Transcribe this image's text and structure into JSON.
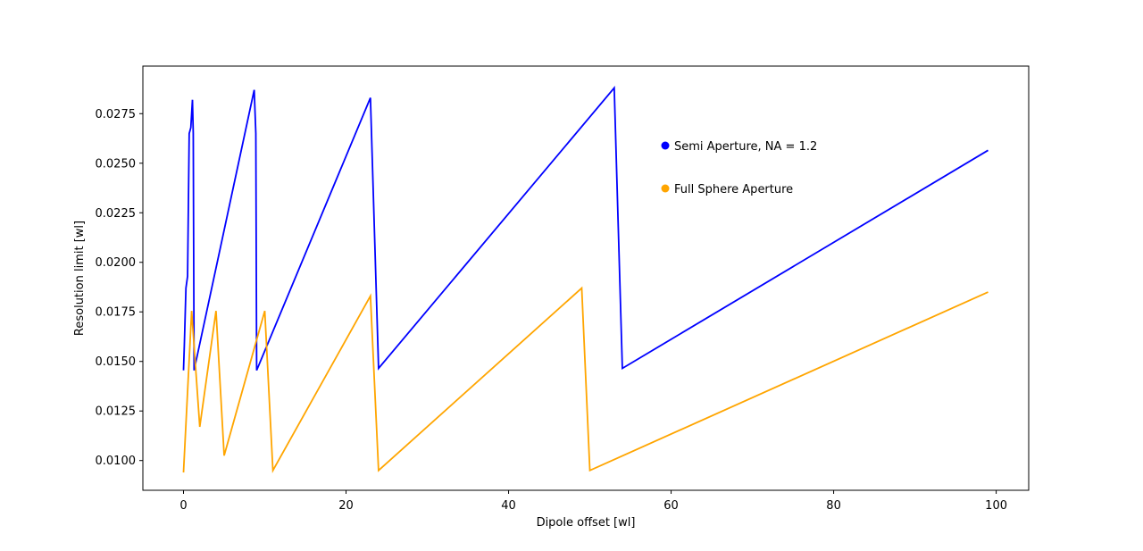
{
  "chart_data": {
    "type": "line",
    "title": "",
    "xlabel": "Dipole offset [wl]",
    "ylabel": "Resolution limit [wl]",
    "xlim": [
      -5,
      104
    ],
    "ylim": [
      0.0085,
      0.0299
    ],
    "xticks": [
      0,
      20,
      40,
      60,
      80,
      100
    ],
    "xtick_labels": [
      "0",
      "20",
      "40",
      "60",
      "80",
      "100"
    ],
    "yticks": [
      0.01,
      0.0125,
      0.015,
      0.0175,
      0.02,
      0.0225,
      0.025,
      0.0275
    ],
    "ytick_labels": [
      "0.0100",
      "0.0125",
      "0.0150",
      "0.0175",
      "0.0200",
      "0.0225",
      "0.0250",
      "0.0275"
    ],
    "grid": false,
    "legend_position": "upper-center-right",
    "series": [
      {
        "name": "Semi Aperture, NA = 1.2",
        "color": "#0000ff",
        "points": [
          [
            0,
            0.01455
          ],
          [
            0.1,
            0.0158
          ],
          [
            0.3,
            0.0187
          ],
          [
            0.5,
            0.0193
          ],
          [
            0.7,
            0.0265
          ],
          [
            0.9,
            0.0268
          ],
          [
            1.1,
            0.0282
          ],
          [
            1.2,
            0.0265
          ],
          [
            1.3,
            0.01455
          ],
          [
            8.7,
            0.0287
          ],
          [
            8.9,
            0.0265
          ],
          [
            9.0,
            0.01455
          ],
          [
            23.0,
            0.0283
          ],
          [
            24.0,
            0.01465
          ],
          [
            53.0,
            0.0288
          ],
          [
            54.0,
            0.01465
          ],
          [
            99.0,
            0.02565
          ]
        ]
      },
      {
        "name": "Full Sphere Aperture",
        "color": "#ffa500",
        "points": [
          [
            0,
            0.0094
          ],
          [
            1.0,
            0.01755
          ],
          [
            2.0,
            0.0117
          ],
          [
            4.0,
            0.01755
          ],
          [
            5.0,
            0.01025
          ],
          [
            10.0,
            0.01755
          ],
          [
            11.0,
            0.0095
          ],
          [
            23.0,
            0.0183
          ],
          [
            24.0,
            0.0095
          ],
          [
            49.0,
            0.0187
          ],
          [
            50.0,
            0.0095
          ],
          [
            99.0,
            0.0185
          ]
        ]
      }
    ]
  }
}
